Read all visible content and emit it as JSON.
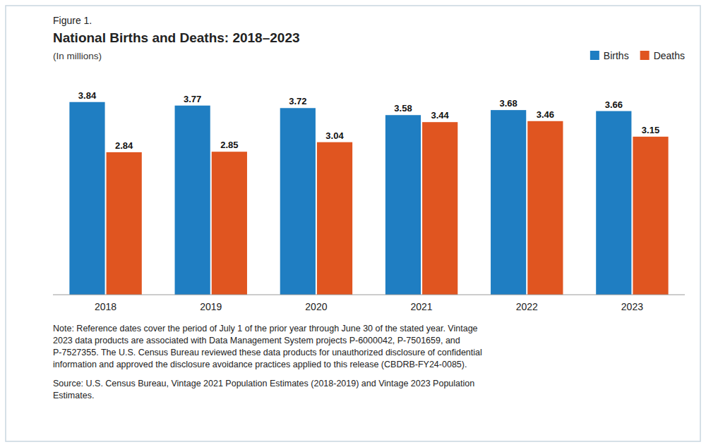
{
  "chart_data": {
    "type": "bar",
    "figure_label": "Figure 1.",
    "title": "National Births and Deaths: 2018–2023",
    "subtitle": "(In millions)",
    "categories": [
      "2018",
      "2019",
      "2020",
      "2021",
      "2022",
      "2023"
    ],
    "series": [
      {
        "name": "Births",
        "color": "#1f7ec2",
        "values": [
          3.84,
          3.77,
          3.72,
          3.58,
          3.68,
          3.66
        ]
      },
      {
        "name": "Deaths",
        "color": "#e05520",
        "values": [
          2.84,
          2.85,
          3.04,
          3.44,
          3.46,
          3.15
        ]
      }
    ],
    "ylim": [
      0,
      4.3
    ],
    "grid": false,
    "legend": "upper right",
    "data_labels": true,
    "tick_labels": "x",
    "annotations": [
      "Note: Reference dates cover the period of July 1 of the prior year through June 30 of the stated year. Vintage\n2023 data products are associated with Data Management System projects P-6000042, P-7501659, and\nP-7527355. The U.S. Census Bureau reviewed these data products for unauthorized disclosure of confidential\ninformation and approved the disclosure avoidance practices applied to this release (CBDRB-FY24-0085).",
      "Source: U.S. Census Bureau, Vintage 2021 Population Estimates (2018-2019) and Vintage 2023 Population\nEstimates."
    ]
  }
}
